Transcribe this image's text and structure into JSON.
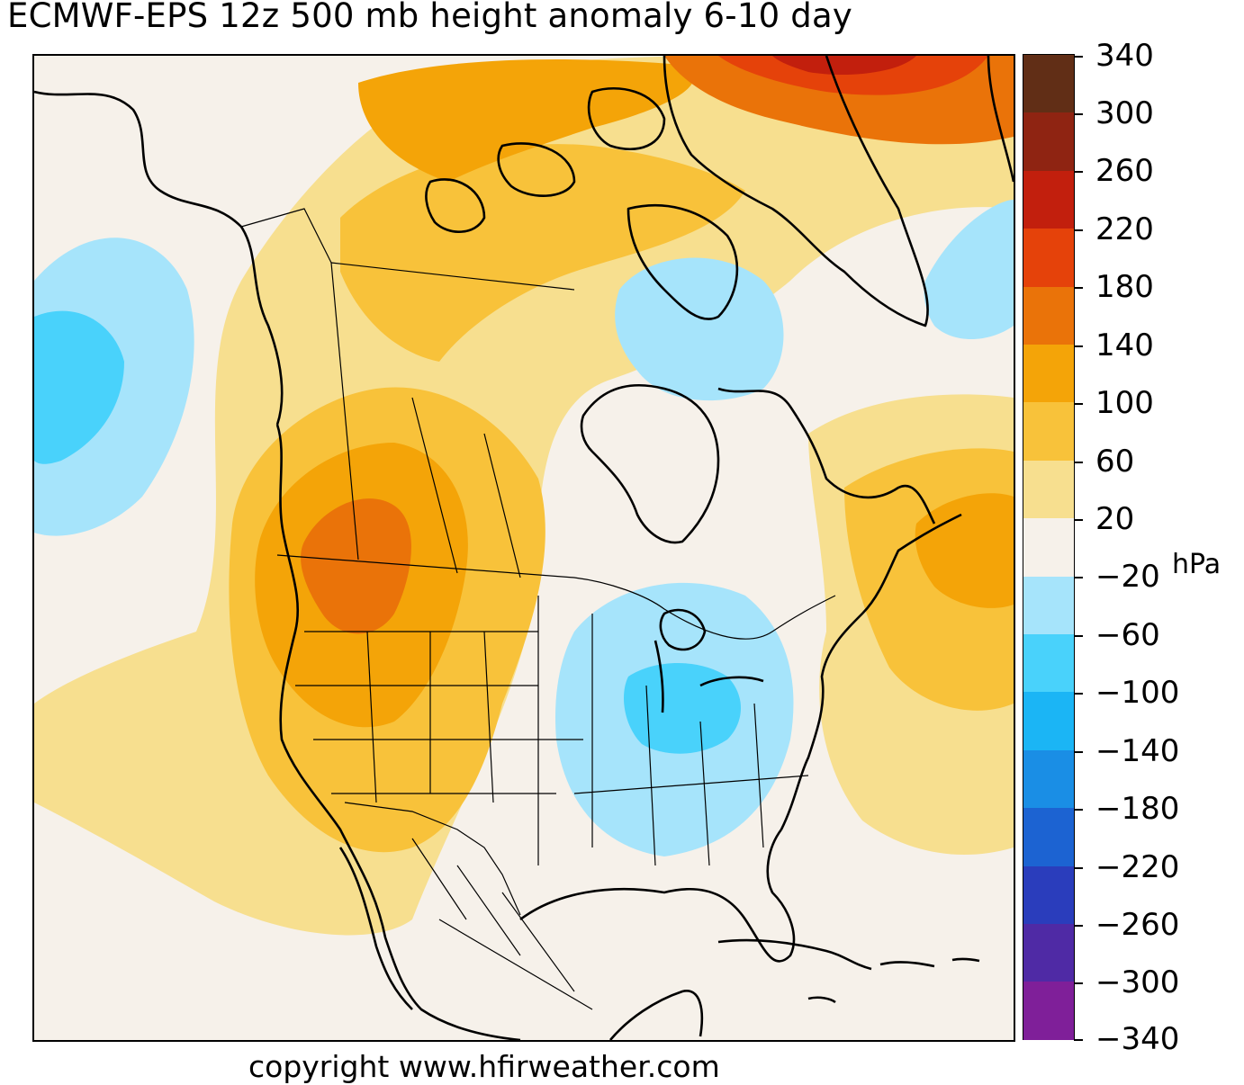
{
  "title": "ECMWF-EPS 12z 500 mb height anomaly 6-10 day",
  "copyright": "copyright www.hfirweather.com",
  "colorbar": {
    "unit": "hPa",
    "ticks": [
      "340",
      "300",
      "260",
      "220",
      "180",
      "140",
      "100",
      "60",
      "20",
      "−20",
      "−60",
      "−100",
      "−140",
      "−180",
      "−220",
      "−260",
      "−300",
      "−340"
    ],
    "colors": [
      "#612e16",
      "#8f2412",
      "#c21f0d",
      "#e5420a",
      "#ea7309",
      "#f4a408",
      "#f8c23a",
      "#f7df8f",
      "#f6f1ea",
      "#a6e4fb",
      "#49d2fb",
      "#1bb5f5",
      "#1a8ee5",
      "#1c63d2",
      "#2a3dbc",
      "#4f2aa5",
      "#7f1f99"
    ]
  },
  "regions": {
    "positive": [
      "Pacific Northwest / Rockies",
      "Arctic Archipelago / Greenland",
      "North Atlantic"
    ],
    "negative": [
      "Eastern United States / Ohio Valley",
      "Hudson Bay",
      "Gulf of Alaska",
      "Labrador Sea"
    ]
  }
}
